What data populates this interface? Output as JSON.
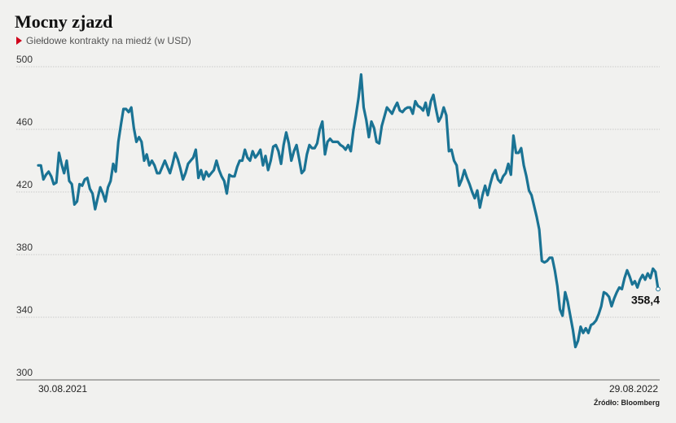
{
  "header": {
    "title": "Mocny zjazd",
    "subtitle": "Giełdowe kontrakty na miedź (w USD)",
    "marker_icon": "red-triangle-icon"
  },
  "source": "Źródło: Bloomberg",
  "colors": {
    "line": "#1a7394",
    "background": "#f1f1ef",
    "grid": "#bdbdbd",
    "marker": "#d0021b"
  },
  "chart_data": {
    "type": "line",
    "title": "Mocny zjazd",
    "subtitle": "Giełdowe kontrakty na miedź (w USD)",
    "xlabel": "",
    "ylabel": "",
    "ylim": [
      300,
      500
    ],
    "yticks": [
      500,
      460,
      420,
      380,
      340,
      300
    ],
    "x_start_label": "30.08.2021",
    "x_end_label": "29.08.2022",
    "grid": true,
    "legend": "none",
    "last_value_label": "358,4",
    "series": [
      {
        "values": [
          437,
          437,
          428,
          431,
          433,
          430,
          425,
          426,
          445,
          438,
          432,
          440,
          427,
          425,
          412,
          414,
          425,
          424,
          428,
          429,
          422,
          419,
          409,
          416,
          423,
          419,
          414,
          423,
          427,
          438,
          433,
          452,
          463,
          473,
          473,
          471,
          474,
          461,
          452,
          455,
          452,
          440,
          444,
          437,
          440,
          437,
          432,
          432,
          436,
          440,
          436,
          432,
          438,
          445,
          441,
          435,
          428,
          432,
          438,
          440,
          442,
          447,
          429,
          434,
          428,
          433,
          430,
          432,
          434,
          440,
          434,
          430,
          427,
          419,
          431,
          430,
          430,
          436,
          440,
          440,
          447,
          442,
          440,
          446,
          442,
          444,
          447,
          437,
          443,
          434,
          440,
          449,
          450,
          446,
          438,
          450,
          458,
          451,
          440,
          446,
          450,
          441,
          432,
          434,
          444,
          450,
          448,
          448,
          451,
          460,
          465,
          444,
          452,
          454,
          452,
          452,
          452,
          450,
          449,
          447,
          450,
          446,
          459,
          469,
          480,
          495,
          474,
          466,
          455,
          465,
          461,
          452,
          451,
          462,
          468,
          474,
          472,
          470,
          474,
          477,
          472,
          471,
          473,
          474,
          474,
          470,
          478,
          475,
          474,
          472,
          477,
          469,
          478,
          482,
          473,
          465,
          468,
          474,
          469,
          446,
          447,
          440,
          437,
          424,
          428,
          434,
          429,
          425,
          420,
          416,
          421,
          410,
          418,
          424,
          418,
          425,
          431,
          434,
          428,
          426,
          430,
          432,
          438,
          431,
          456,
          445,
          445,
          448,
          437,
          430,
          421,
          418,
          411,
          404,
          396,
          376,
          375,
          376,
          378,
          378,
          370,
          360,
          345,
          341,
          356,
          350,
          341,
          332,
          321,
          325,
          334,
          330,
          333,
          330,
          335,
          336,
          338,
          342,
          347,
          356,
          355,
          353,
          347,
          352,
          356,
          359,
          358,
          365,
          370,
          366,
          361,
          363,
          359,
          364,
          367,
          364,
          368,
          365,
          371,
          369,
          358
        ]
      }
    ]
  }
}
